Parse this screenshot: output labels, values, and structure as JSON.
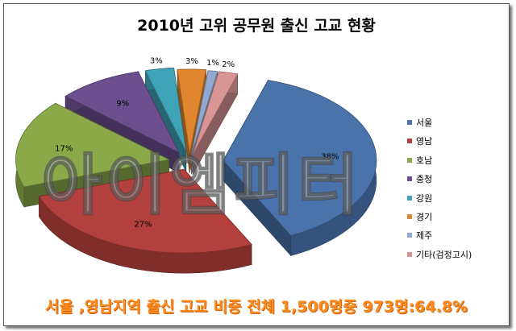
{
  "chart_data": {
    "type": "pie",
    "style": "3d-exploded",
    "title": "2010년 고위 공무원 출신 고교 현황",
    "slices": [
      {
        "label": "서울",
        "value": 38,
        "value_label": "38%",
        "color": "#4a73ac"
      },
      {
        "label": "영남",
        "value": 27,
        "value_label": "27%",
        "color": "#b2403c"
      },
      {
        "label": "호남",
        "value": 17,
        "value_label": "17%",
        "color": "#8aaa4a"
      },
      {
        "label": "충청",
        "value": 9,
        "value_label": "9%",
        "color": "#6d4f8f"
      },
      {
        "label": "강원",
        "value": 3,
        "value_label": "3%",
        "color": "#3fa3b8"
      },
      {
        "label": "경기",
        "value": 3,
        "value_label": "3%",
        "color": "#e0862e"
      },
      {
        "label": "제주",
        "value": 1,
        "value_label": "1%",
        "color": "#92a8cf"
      },
      {
        "label": "기타(검정고시)",
        "value": 2,
        "value_label": "2%",
        "color": "#d99594"
      }
    ],
    "legend_position": "right"
  },
  "watermark": "아이엠피터",
  "caption": "서울 ,영남지역 출신 고교 비중 전체 1,500명중 973명:64.8%"
}
